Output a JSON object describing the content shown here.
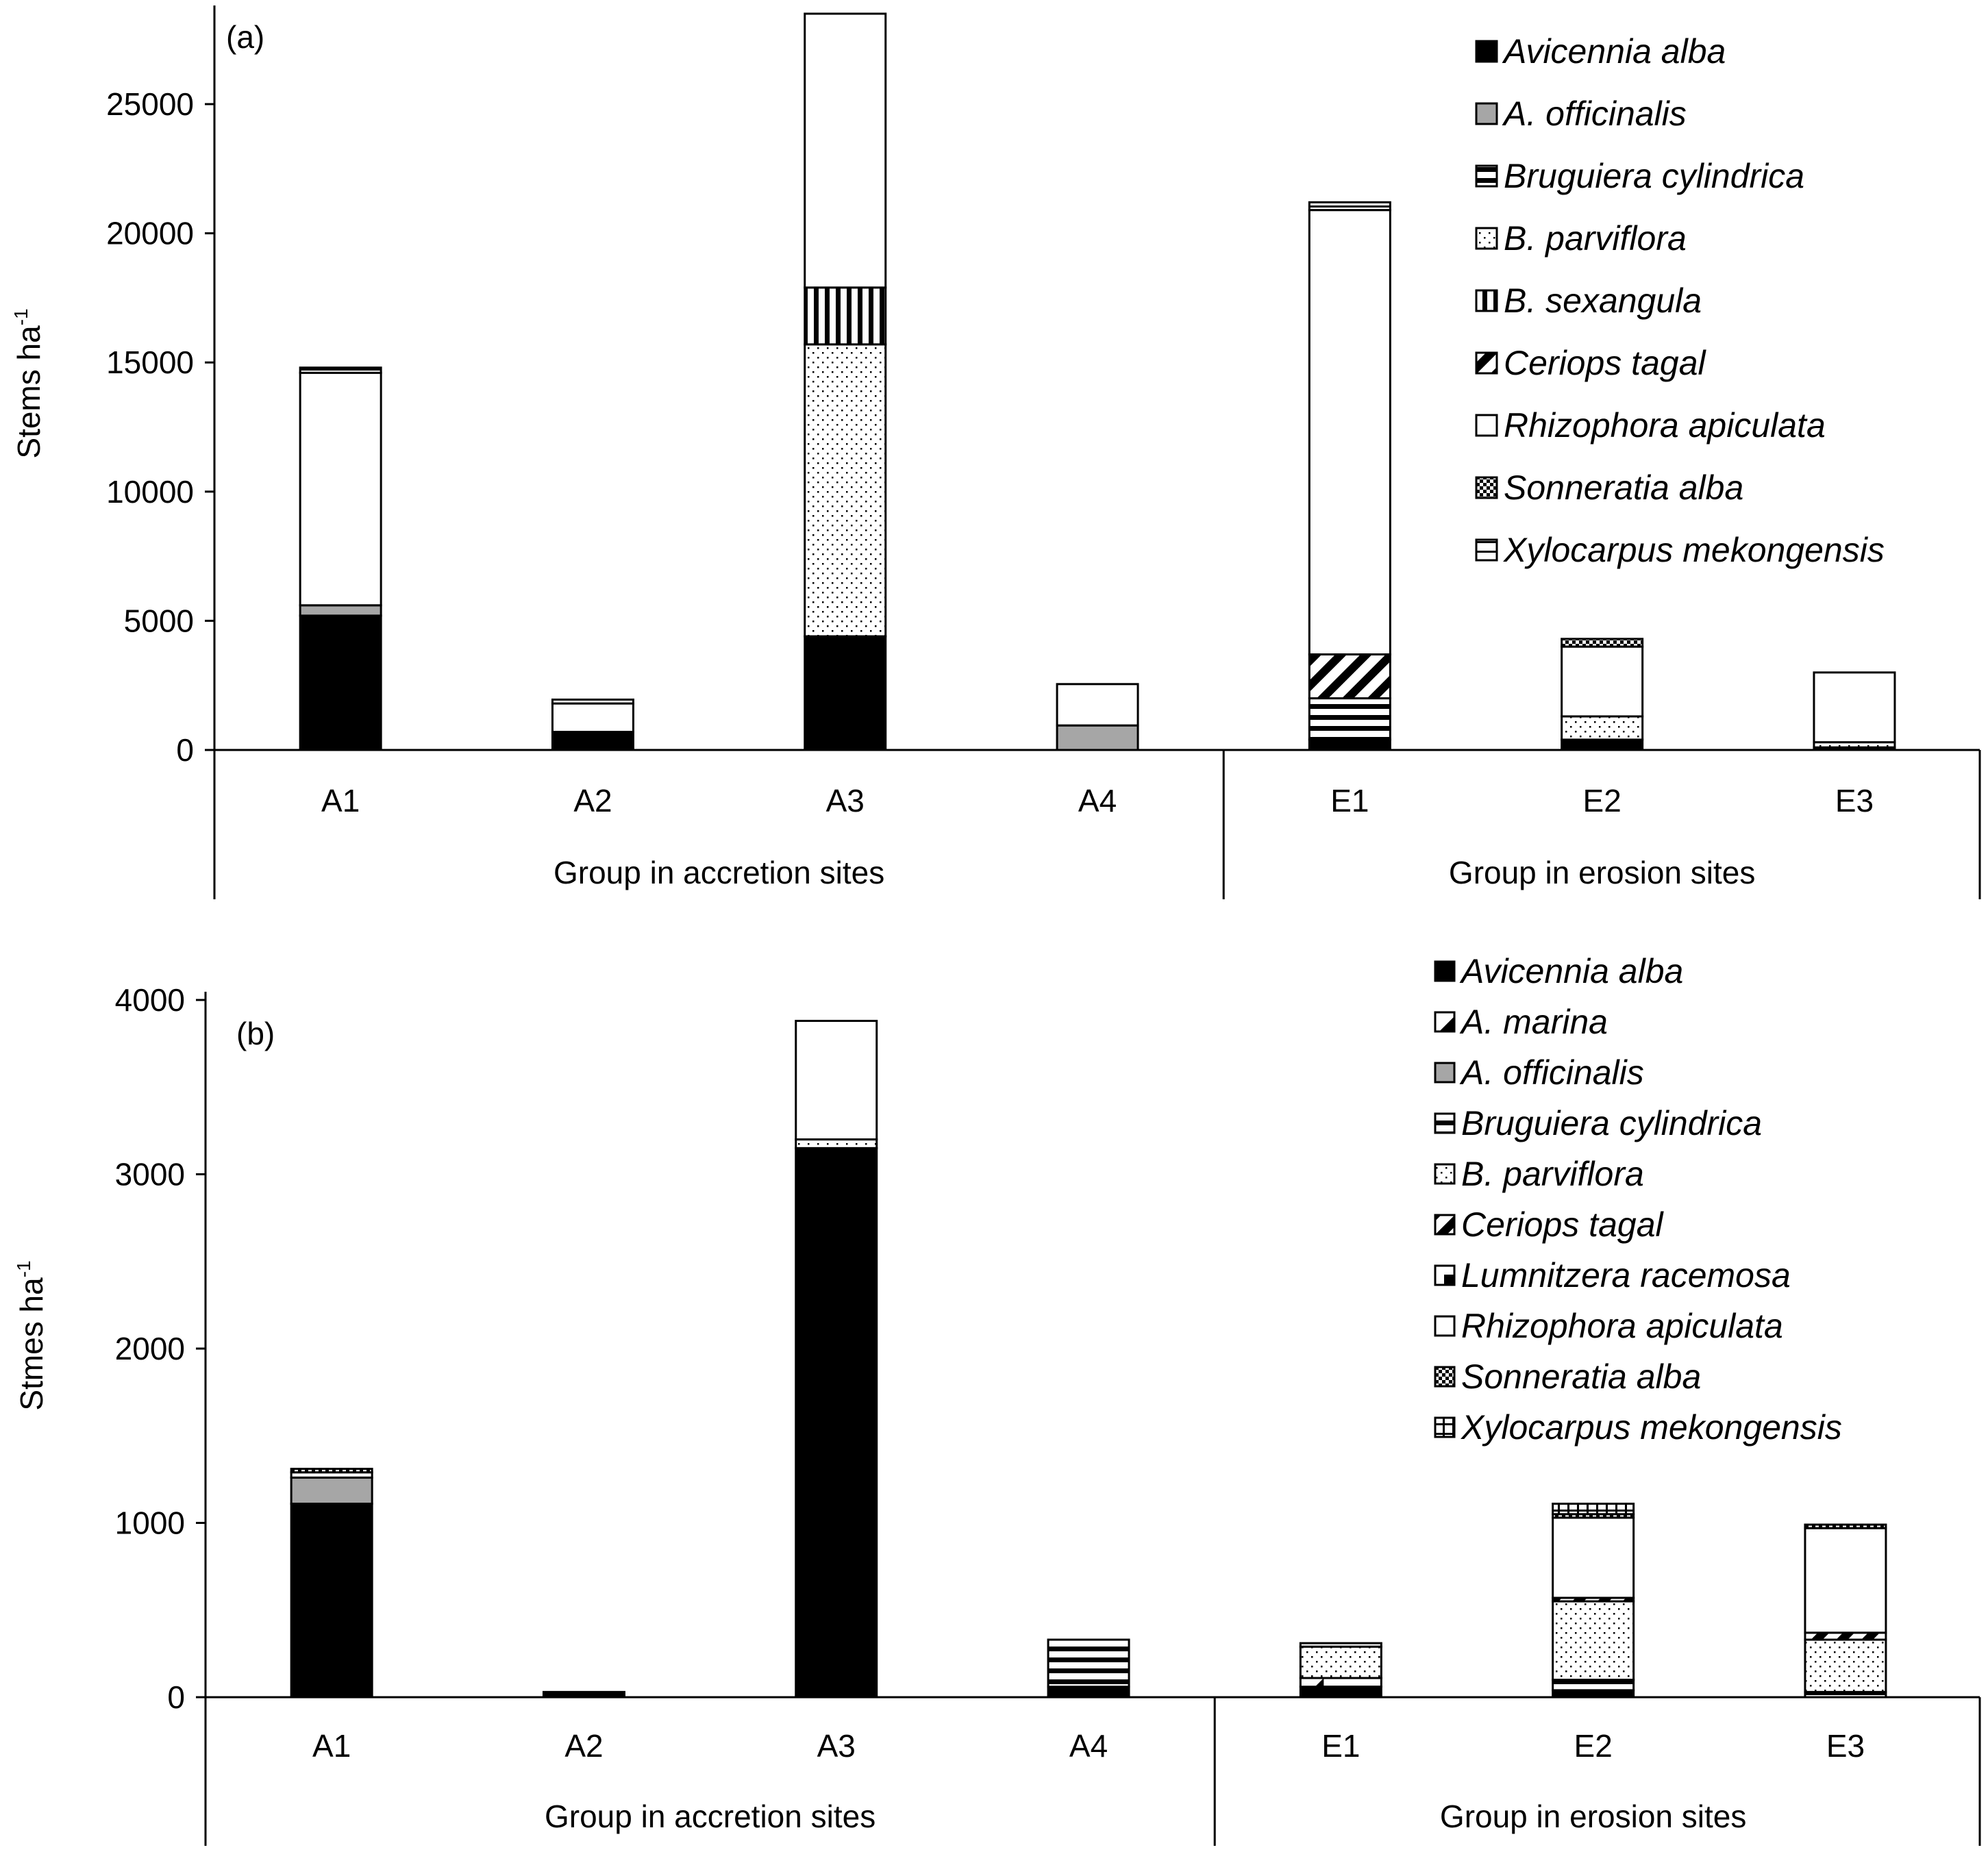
{
  "chart_data": [
    {
      "type": "bar",
      "stacked": true,
      "panel_label": "(a)",
      "ylabel": "Stems ha",
      "ylabel_sup": "-1",
      "ylim": [
        0,
        28500
      ],
      "yticks": [
        0,
        5000,
        10000,
        15000,
        20000,
        25000
      ],
      "categories": [
        "A1",
        "A2",
        "A3",
        "A4",
        "E1",
        "E2",
        "E3"
      ],
      "groups": [
        {
          "label": "Group in accretion sites",
          "count": 4
        },
        {
          "label": "Group in erosion sites",
          "count": 3
        }
      ],
      "legend_position": "top-right",
      "series": [
        {
          "name": "Avicennia alba",
          "pattern": "solid-black",
          "values": [
            5200,
            700,
            4400,
            0,
            400,
            400,
            0
          ]
        },
        {
          "name": "A. officinalis",
          "pattern": "solid-gray",
          "values": [
            400,
            0,
            0,
            950,
            0,
            0,
            0
          ]
        },
        {
          "name": "Bruguiera cylindrica",
          "pattern": "hlines",
          "values": [
            0,
            0,
            0,
            0,
            1600,
            0,
            100
          ]
        },
        {
          "name": "B. parviflora",
          "pattern": "dots",
          "values": [
            0,
            0,
            11300,
            0,
            0,
            900,
            200
          ]
        },
        {
          "name": "B. sexangula",
          "pattern": "vlines",
          "values": [
            0,
            0,
            2200,
            0,
            0,
            0,
            0
          ]
        },
        {
          "name": "Ceriops tagal",
          "pattern": "diag",
          "values": [
            0,
            0,
            0,
            0,
            1700,
            0,
            0
          ]
        },
        {
          "name": "Rhizophora apiculata",
          "pattern": "white",
          "values": [
            9000,
            1100,
            10600,
            1600,
            17200,
            2700,
            2700
          ]
        },
        {
          "name": "Sonneratia alba",
          "pattern": "checker",
          "values": [
            0,
            0,
            0,
            0,
            0,
            300,
            0
          ]
        },
        {
          "name": "Xylocarpus mekongensis",
          "pattern": "hsplit",
          "values": [
            200,
            150,
            0,
            0,
            300,
            0,
            0
          ]
        }
      ]
    },
    {
      "type": "bar",
      "stacked": true,
      "panel_label": "(b)",
      "ylabel": "Stmes ha",
      "ylabel_sup": "-1",
      "ylim": [
        0,
        4000
      ],
      "yticks": [
        0,
        1000,
        2000,
        3000,
        4000
      ],
      "categories": [
        "A1",
        "A2",
        "A3",
        "A4",
        "E1",
        "E2",
        "E3"
      ],
      "groups": [
        {
          "label": "Group in accretion sites",
          "count": 4
        },
        {
          "label": "Group in erosion sites",
          "count": 3
        }
      ],
      "legend_position": "top-right",
      "series": [
        {
          "name": "Avicennia alba",
          "pattern": "solid-black",
          "values": [
            1110,
            30,
            3150,
            60,
            60,
            40,
            0
          ]
        },
        {
          "name": "A. marina",
          "pattern": "halfblack",
          "values": [
            0,
            0,
            0,
            0,
            50,
            0,
            0
          ]
        },
        {
          "name": "A. officinalis",
          "pattern": "solid-gray",
          "values": [
            150,
            0,
            0,
            0,
            0,
            0,
            0
          ]
        },
        {
          "name": "Bruguiera cylindrica",
          "pattern": "hlines",
          "values": [
            0,
            0,
            0,
            270,
            0,
            60,
            30
          ]
        },
        {
          "name": "B. parviflora",
          "pattern": "dots",
          "values": [
            0,
            0,
            50,
            0,
            180,
            450,
            300
          ]
        },
        {
          "name": "Ceriops tagal",
          "pattern": "diag",
          "values": [
            0,
            0,
            0,
            0,
            0,
            20,
            40
          ]
        },
        {
          "name": "Lumnitzera racemosa",
          "pattern": "quarterblack",
          "values": [
            0,
            0,
            0,
            0,
            0,
            0,
            0
          ]
        },
        {
          "name": "Rhizophora apiculata",
          "pattern": "white",
          "values": [
            30,
            0,
            680,
            0,
            20,
            460,
            600
          ]
        },
        {
          "name": "Sonneratia alba",
          "pattern": "checker",
          "values": [
            20,
            0,
            0,
            0,
            0,
            20,
            20
          ]
        },
        {
          "name": "Xylocarpus mekongensis",
          "pattern": "cross",
          "values": [
            0,
            0,
            0,
            0,
            0,
            60,
            0
          ]
        }
      ]
    }
  ]
}
